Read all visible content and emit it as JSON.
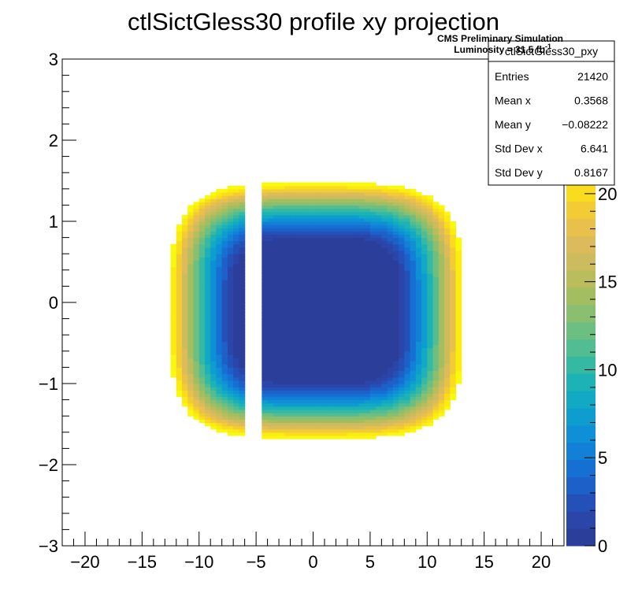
{
  "chart_data": {
    "type": "heatmap",
    "title": "ctlSictGless30 profile xy projection",
    "xlabel": "",
    "ylabel": "",
    "xlim": [
      -22,
      22
    ],
    "ylim": [
      -3,
      3
    ],
    "zlim": [
      0,
      22.5
    ],
    "x_ticks": [
      -20,
      -15,
      -10,
      -5,
      0,
      5,
      10,
      15,
      20
    ],
    "y_ticks": [
      -3,
      -2,
      -1,
      0,
      1,
      2,
      3
    ],
    "z_ticks": [
      0,
      5,
      10,
      15,
      20
    ],
    "z_tick_partial": "5",
    "annotation": {
      "line1": "CMS Preliminary Simulation",
      "line2": "Luminosity = 31.5 fb",
      "line2_superscript": "-1"
    },
    "distribution": {
      "center": [
        0.3,
        -0.1
      ],
      "x_half_width": 12.8,
      "y_half_width": 1.57,
      "shape_exponent": 4,
      "inner_value": 0.5,
      "outer_value": 22.5,
      "gap_x": [
        -5.9,
        -4.6
      ],
      "bin_size": [
        0.5,
        0.04
      ]
    },
    "colors": {
      "palette": [
        "#2a3e9a",
        "#2b45a9",
        "#2451b8",
        "#1d60c8",
        "#166fd3",
        "#1280d6",
        "#0f8fd5",
        "#0e9dcf",
        "#11a9c4",
        "#1db2b5",
        "#36b9a3",
        "#52bd92",
        "#6dbf81",
        "#89bf6f",
        "#a3be61",
        "#b9bd5c",
        "#cdbc5e",
        "#dcbb5c",
        "#e9c04c",
        "#f3cb35",
        "#f9dc1e",
        "#fbec10",
        "#f9f90d"
      ]
    },
    "stats_box": {
      "name": "ctlSictGless30_pxy",
      "rows": [
        {
          "label": "Entries",
          "value": "21420"
        },
        {
          "label": "Mean x",
          "value": "0.3568"
        },
        {
          "label": "Mean y",
          "value": "−0.08222"
        },
        {
          "label": "Std Dev x",
          "value": "6.641"
        },
        {
          "label": "Std Dev y",
          "value": "0.8167"
        }
      ]
    }
  }
}
